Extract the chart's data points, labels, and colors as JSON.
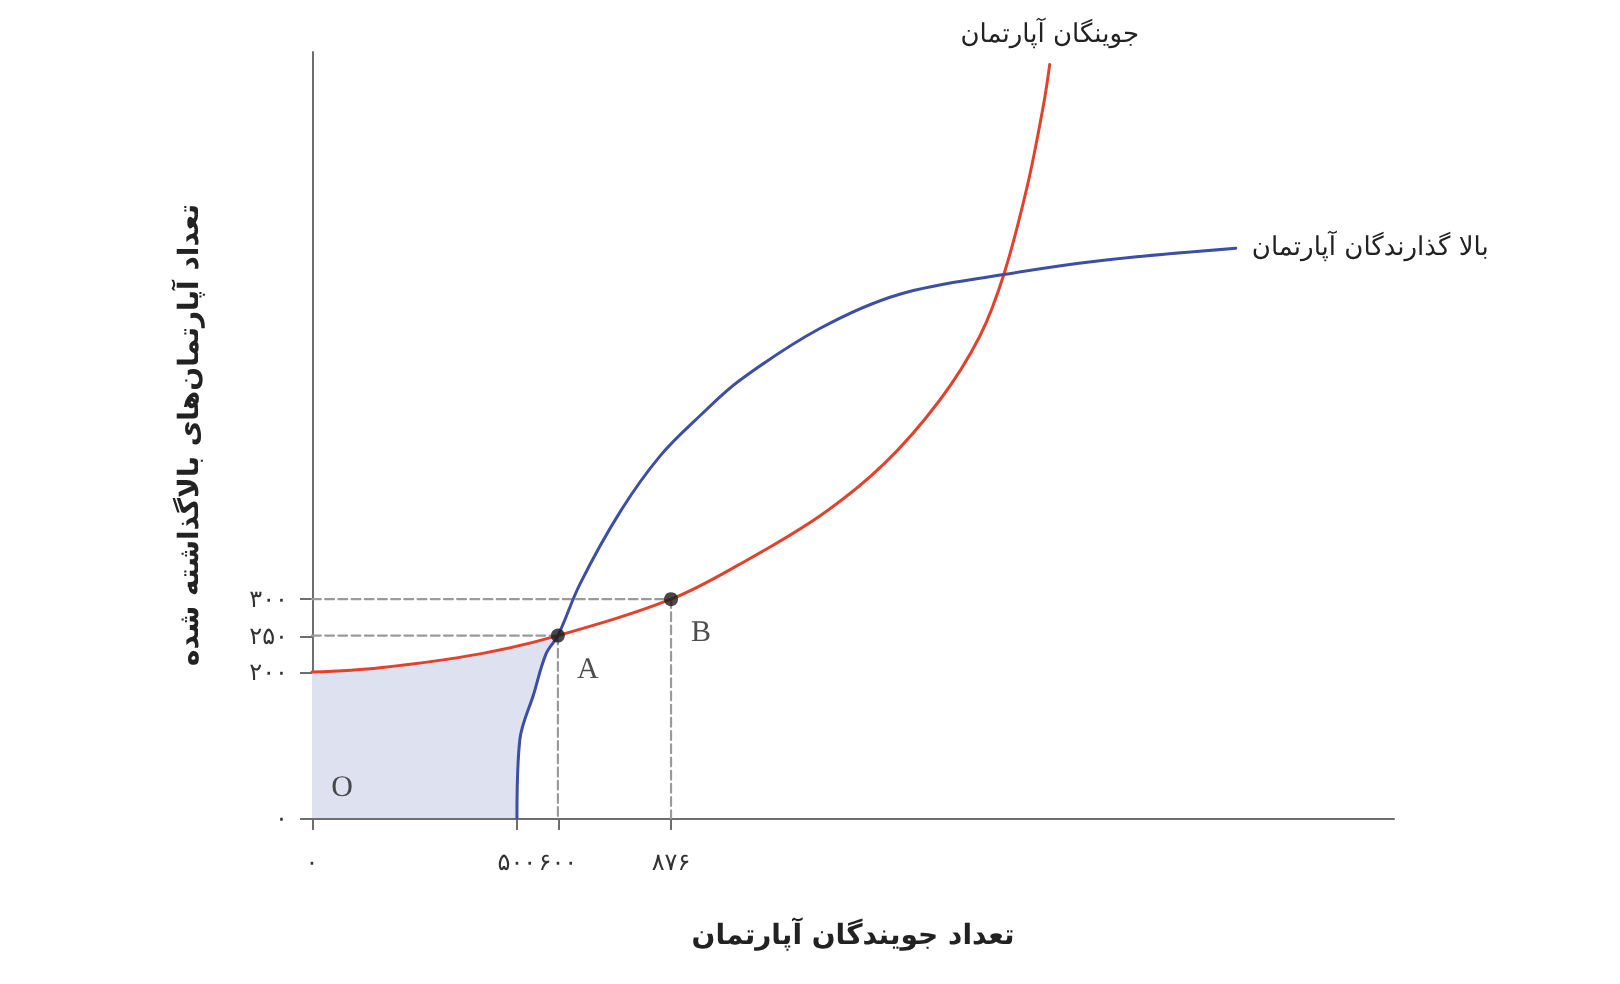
{
  "chart_data": {
    "type": "line",
    "xlabel": "تعداد جویندگان آپارتمان",
    "ylabel": "تعداد آپارتمان‌های بالاگذاشته شده",
    "series": [
      {
        "color": "#9a9a9a",
        "line_style": "dashed",
        "x": [
          0,
          600
        ],
        "values": [
          250,
          250
        ]
      },
      {
        "color": "#9a9a9a",
        "line_style": "dashed",
        "x": [
          600,
          600
        ],
        "values": [
          250,
          0
        ]
      },
      {
        "color": "#9a9a9a",
        "line_style": "dashed",
        "x": [
          0,
          876
        ],
        "values": [
          300,
          300
        ]
      },
      {
        "color": "#9a9a9a",
        "line_style": "dashed",
        "x": [
          876,
          876
        ],
        "values": [
          300,
          0
        ]
      },
      {
        "name": "جوینگان آپارتمان",
        "color": "#e2412b",
        "x": [
          0,
          166,
          410,
          600,
          876,
          1044,
          1239,
          1395,
          1532,
          1629,
          1688,
          1746,
          1785,
          1800
        ],
        "values": [
          200,
          206,
          225,
          250,
          300,
          348,
          414,
          485,
          573,
          660,
          745,
          868,
          978,
          1033
        ]
      },
      {
        "name": "بالا گذارندگان آپارتمان",
        "color": "#3c4ea6",
        "x": [
          0,
          166,
          410,
          500,
          507,
          541,
          571,
          600,
          654,
          751,
          849,
          946,
          1044,
          1239,
          1434,
          1688,
          1922,
          2254
        ],
        "values": [
          null,
          null,
          null,
          0,
          107,
          170,
          225,
          250,
          321,
          419,
          496,
          551,
          600,
          671,
          718,
          745,
          764,
          781
        ],
        "lower": [
          0,
          0,
          0,
          0,
          107,
          170,
          225,
          250,
          null,
          null,
          null,
          null,
          null,
          null,
          null,
          null,
          null,
          null
        ],
        "upper": [
          200,
          206,
          225,
          237,
          238,
          242,
          246,
          250,
          null,
          null,
          null,
          null,
          null,
          null,
          null,
          null,
          null,
          null
        ]
      },
      {
        "type": "scatter",
        "color": "#1a1a1a",
        "marker": "circle",
        "x": [
          600,
          876
        ],
        "values": [
          250,
          300
        ]
      }
    ],
    "annotations": [
      {
        "text": "O",
        "x": 0,
        "y": 0
      },
      {
        "text": "A",
        "x": 600,
        "y": 250
      },
      {
        "text": "B",
        "x": 876,
        "y": 300
      }
    ],
    "xlim": [
      0,
      2640
    ],
    "ylim": [
      0,
      1050
    ],
    "xticks": [
      {
        "value": 0,
        "label": "۰"
      },
      {
        "value": 500,
        "label": "۵۰۰"
      },
      {
        "value": 600,
        "label": "۶۰۰"
      },
      {
        "value": 876,
        "label": "۸۷۶"
      }
    ],
    "yticks": [
      {
        "value": 0,
        "label": "۰"
      },
      {
        "value": 200,
        "label": "۲۰۰"
      },
      {
        "value": 250,
        "label": "۲۵۰"
      },
      {
        "value": 300,
        "label": "۳۰۰"
      }
    ],
    "grid": false,
    "legend": false,
    "marker": "none",
    "line_style": "solid"
  }
}
